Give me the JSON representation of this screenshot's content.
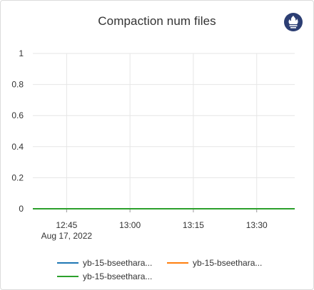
{
  "title": "Compaction num files",
  "icon": "prometheus-icon",
  "chart_data": {
    "type": "line",
    "x_ticks": [
      "12:45",
      "13:00",
      "13:15",
      "13:30"
    ],
    "x_tick_sublabel": "Aug 17, 2022",
    "x_ticks_time": [
      "12:45",
      "13:00",
      "13:15",
      "13:30"
    ],
    "xlim": [
      "12:37",
      "13:39"
    ],
    "y_ticks": [
      "0",
      "0.2",
      "0.4",
      "0.6",
      "0.8",
      "1"
    ],
    "ylim": [
      0,
      1
    ],
    "grid": true,
    "legend_position": "bottom",
    "series": [
      {
        "name": "yb-15-bseethara...",
        "color": "#1f77b4",
        "x": [
          "12:37",
          "13:39"
        ],
        "values": [
          0,
          0
        ]
      },
      {
        "name": "yb-15-bseethara...",
        "color": "#ff7f0e",
        "x": [
          "12:37",
          "13:39"
        ],
        "values": [
          0,
          0
        ]
      },
      {
        "name": "yb-15-bseethara...",
        "color": "#2ca02c",
        "x": [
          "12:37",
          "13:39"
        ],
        "values": [
          0,
          0
        ]
      }
    ]
  }
}
